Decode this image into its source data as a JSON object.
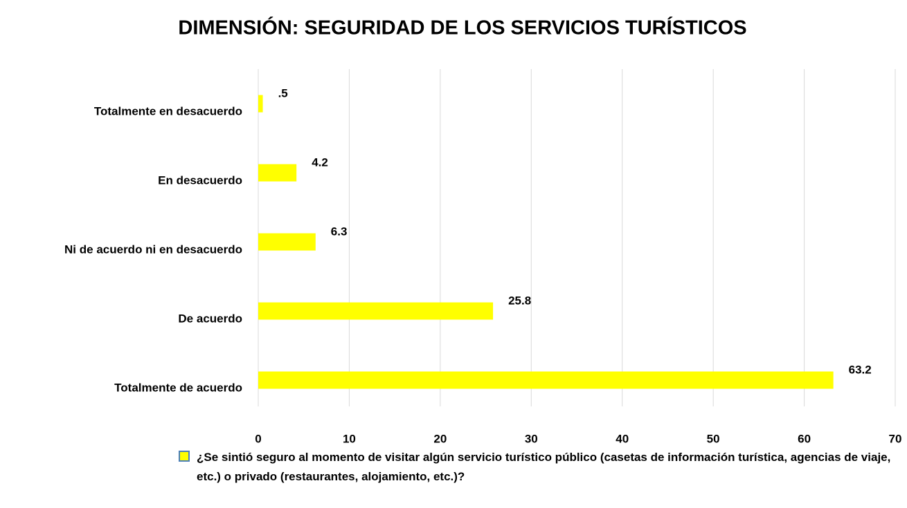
{
  "chart_data": {
    "type": "bar",
    "orientation": "horizontal",
    "title": "DIMENSIÓN: SEGURIDAD DE LOS SERVICIOS TURÍSTICOS",
    "categories": [
      "Totalmente en desacuerdo",
      "En desacuerdo",
      "Ni de acuerdo ni en desacuerdo",
      "De acuerdo",
      "Totalmente de acuerdo"
    ],
    "series": [
      {
        "name": "¿Se sintió seguro al momento de visitar algún servicio turístico público (casetas de información turística, agencias de viaje, etc.) o privado (restaurantes, alojamiento, etc.)?",
        "color": "#ffff00",
        "values": [
          0.5,
          4.2,
          6.3,
          25.8,
          63.2
        ],
        "value_labels": [
          ".5",
          "4.2",
          "6.3",
          "25.8",
          "63.2"
        ]
      }
    ],
    "xlim": [
      0,
      70
    ],
    "xticks": [
      0,
      10,
      20,
      30,
      40,
      50,
      60,
      70
    ],
    "grid": true,
    "legend": "bottom"
  }
}
